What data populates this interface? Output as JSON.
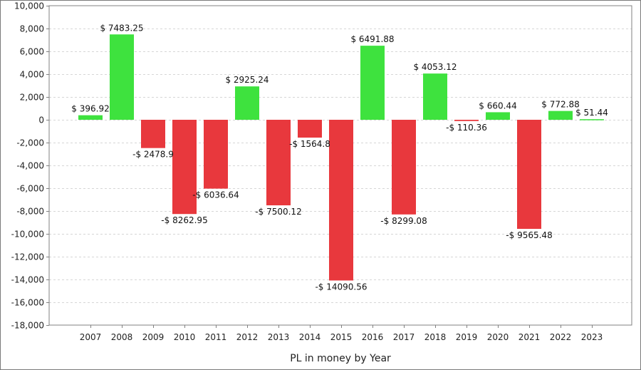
{
  "chart_data": {
    "type": "bar",
    "title": "",
    "xlabel": "PL in money by Year",
    "ylabel": "",
    "ylim": [
      -18000,
      10000
    ],
    "yticks": [
      10000,
      8000,
      6000,
      4000,
      2000,
      0,
      -2000,
      -4000,
      -6000,
      -8000,
      -10000,
      -12000,
      -14000,
      -16000,
      -18000
    ],
    "ytick_labels": [
      "10,000",
      "8,000",
      "6,000",
      "4,000",
      "2,000",
      "0",
      "-2,000",
      "-4,000",
      "-6,000",
      "-8,000",
      "-10,000",
      "-12,000",
      "-14,000",
      "-16,000",
      "-18,000"
    ],
    "categories": [
      "2007",
      "2008",
      "2009",
      "2010",
      "2011",
      "2012",
      "2013",
      "2014",
      "2015",
      "2016",
      "2017",
      "2018",
      "2019",
      "2020",
      "2021",
      "2022",
      "2023"
    ],
    "values": [
      396.92,
      7483.25,
      -2478.9,
      -8262.95,
      -6036.64,
      2925.24,
      -7500.12,
      -1564.8,
      -14090.56,
      6491.88,
      -8299.08,
      4053.12,
      -110.36,
      660.44,
      -9565.48,
      772.88,
      51.44
    ],
    "data_labels": [
      "$ 396.92",
      "$ 7483.25",
      "-$ 2478.9",
      "-$ 8262.95",
      "-$ 6036.64",
      "$ 2925.24",
      "-$ 7500.12",
      "-$ 1564.8",
      "-$ 14090.56",
      "$ 6491.88",
      "-$ 8299.08",
      "$ 4053.12",
      "-$ 110.36",
      "$ 660.44",
      "-$ 9565.48",
      "$ 772.88",
      "$ 51.44"
    ],
    "grid": true,
    "legend": "none",
    "colors": {
      "positive": "#3ee23e",
      "negative": "#e8383d",
      "grid": "#d6d6d6",
      "axis": "#808080"
    }
  }
}
